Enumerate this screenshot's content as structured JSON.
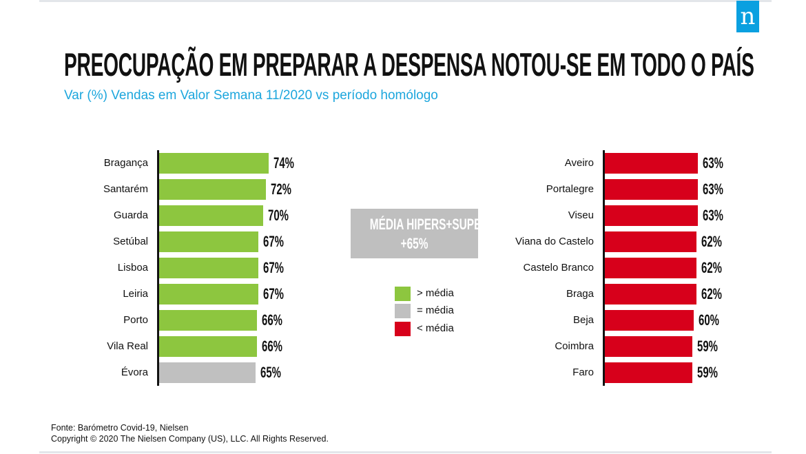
{
  "logo": "n",
  "colors": {
    "above": "#8dc63f",
    "equal": "#c0c0c0",
    "below": "#d7001b",
    "accent": "#1ca6dd"
  },
  "title": "PREOCUPAÇÃO EM PREPARAR A DESPENSA NOTOU-SE EM TODO O PAÍS",
  "subtitle": "Var (%) Vendas em Valor Semana 11/2020 vs período homólogo",
  "average_box": {
    "line1": "MÉDIA HIPERS+SUPERS",
    "line2": "+65%"
  },
  "legend": [
    {
      "label": "> média",
      "color": "#8dc63f"
    },
    {
      "label": "= média",
      "color": "#c0c0c0"
    },
    {
      "label": "< média",
      "color": "#d7001b"
    }
  ],
  "chart_data": [
    {
      "type": "bar",
      "orientation": "horizontal",
      "categories": [
        "Bragança",
        "Santarém",
        "Guarda",
        "Setúbal",
        "Lisboa",
        "Leiria",
        "Porto",
        "Vila Real",
        "Évora"
      ],
      "values": [
        74,
        72,
        70,
        67,
        67,
        67,
        66,
        66,
        65
      ],
      "value_labels": [
        "74%",
        "72%",
        "70%",
        "67%",
        "67%",
        "67%",
        "66%",
        "66%",
        "65%"
      ],
      "status": [
        "above",
        "above",
        "above",
        "above",
        "above",
        "above",
        "above",
        "above",
        "equal"
      ]
    },
    {
      "type": "bar",
      "orientation": "horizontal",
      "categories": [
        "Aveiro",
        "Portalegre",
        "Viseu",
        "Viana do Castelo",
        "Castelo Branco",
        "Braga",
        "Beja",
        "Coimbra",
        "Faro"
      ],
      "values": [
        63,
        63,
        63,
        62,
        62,
        62,
        60,
        59,
        59
      ],
      "value_labels": [
        "63%",
        "63%",
        "63%",
        "62%",
        "62%",
        "62%",
        "60%",
        "59%",
        "59%"
      ],
      "status": [
        "below",
        "below",
        "below",
        "below",
        "below",
        "below",
        "below",
        "below",
        "below"
      ]
    }
  ],
  "footer": {
    "source": "Fonte: Barómetro Covid-19, Nielsen",
    "copyright": "Copyright © 2020 The Nielsen Company (US), LLC. All Rights Reserved."
  }
}
